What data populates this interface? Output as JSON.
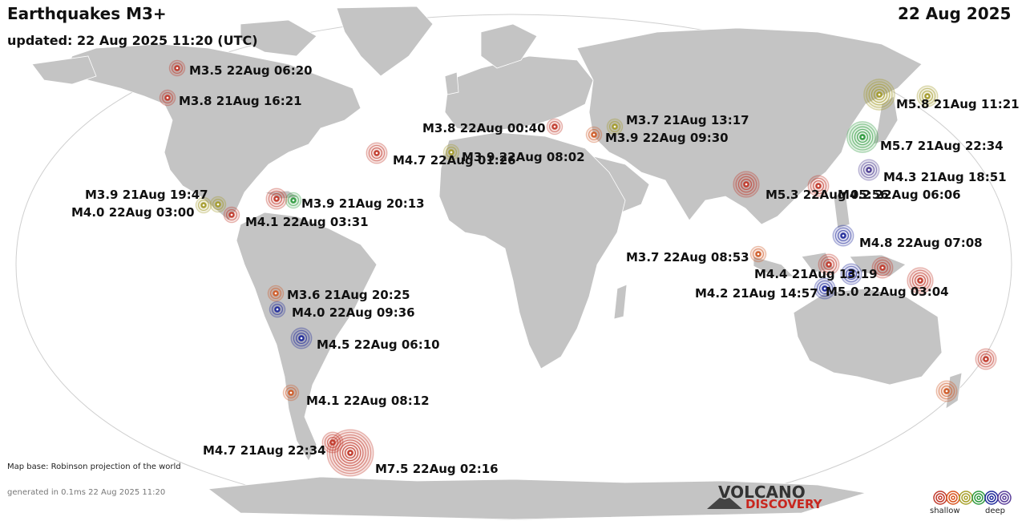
{
  "header": {
    "title": "Earthquakes M3+",
    "date": "22 Aug 2025",
    "updated": "updated: 22 Aug 2025 11:20 (UTC)"
  },
  "footer": {
    "map_base": "Map base: Robinson projection of the world",
    "generated": "generated in 0.1ms 22 Aug 2025 11:20"
  },
  "legend": {
    "shallow": "shallow",
    "deep": "deep",
    "depth_colors": [
      "#c0392b",
      "#d9541f",
      "#a8a02a",
      "#2e9a3e",
      "#1f2a9a",
      "#5a3e9a"
    ]
  },
  "logo": {
    "line1": "VOLCANO",
    "line2": "DISCOVERY"
  },
  "colors": {
    "land": "#c4c4c4",
    "ocean": "#ffffff",
    "red": "#c0392b",
    "orange": "#cf5a26",
    "olive": "#a39a2a",
    "green": "#2e9a3e",
    "blue": "#1f2a9a",
    "purple": "#4a3a90"
  },
  "quakes": [
    {
      "label": "M3.5 22Aug 06:20",
      "mag": 3.5,
      "color": "red"
    },
    {
      "label": "M3.8 21Aug 16:21",
      "mag": 3.8,
      "color": "red"
    },
    {
      "label": "M3.9 21Aug 19:47",
      "mag": 3.9,
      "color": "olive"
    },
    {
      "label": "M4.0 22Aug 03:00",
      "mag": 4.0,
      "color": "olive"
    },
    {
      "label": "M4.1 22Aug 03:31",
      "mag": 4.1,
      "color": "red"
    },
    {
      "label": "M3.9 21Aug 20:13",
      "mag": 3.9,
      "color": "green"
    },
    {
      "label": "M3.6 21Aug 20:25",
      "mag": 3.6,
      "color": "orange"
    },
    {
      "label": "M4.0 22Aug 09:36",
      "mag": 4.0,
      "color": "blue"
    },
    {
      "label": "M4.5 22Aug 06:10",
      "mag": 4.5,
      "color": "blue"
    },
    {
      "label": "M4.1 22Aug 08:12",
      "mag": 4.1,
      "color": "orange"
    },
    {
      "label": "M4.7 21Aug 22:34",
      "mag": 4.7,
      "color": "red"
    },
    {
      "label": "M7.5 22Aug 02:16",
      "mag": 7.5,
      "color": "red"
    },
    {
      "label": "M4.7 22Aug 01:26",
      "mag": 4.7,
      "color": "red"
    },
    {
      "label": "M3.9 22Aug 08:02",
      "mag": 3.9,
      "color": "olive"
    },
    {
      "label": "M3.8 22Aug 00:40",
      "mag": 3.8,
      "color": "red"
    },
    {
      "label": "M3.7 21Aug 13:17",
      "mag": 3.7,
      "color": "olive"
    },
    {
      "label": "M3.9 22Aug 09:30",
      "mag": 3.9,
      "color": "orange"
    },
    {
      "label": "M5.8 21Aug 11:21",
      "mag": 5.8,
      "color": "olive"
    },
    {
      "label": "M5.7 21Aug 22:34",
      "mag": 5.7,
      "color": "green"
    },
    {
      "label": "M4.3 21Aug 18:51",
      "mag": 4.3,
      "color": "purple"
    },
    {
      "label": "M5.3 22Aug 05:56",
      "mag": 5.3,
      "color": "red"
    },
    {
      "label": "M4.2 22Aug 06:06",
      "mag": 4.2,
      "color": "red"
    },
    {
      "label": "M4.8 22Aug 07:08",
      "mag": 4.8,
      "color": "blue"
    },
    {
      "label": "M3.7 22Aug 08:53",
      "mag": 3.7,
      "color": "orange"
    },
    {
      "label": "M4.4 21Aug 13:19",
      "mag": 4.4,
      "color": "red"
    },
    {
      "label": "M4.2 21Aug 14:57",
      "mag": 4.2,
      "color": "blue"
    },
    {
      "label": "M5.0 22Aug 03:04",
      "mag": 5.0,
      "color": "red"
    },
    {
      "label": "",
      "mag": 4.3,
      "color": "olive"
    },
    {
      "label": "",
      "mag": 4.5,
      "color": "red"
    },
    {
      "label": "",
      "mag": 4.5,
      "color": "blue"
    },
    {
      "label": "",
      "mag": 4.5,
      "color": "red"
    },
    {
      "label": "",
      "mag": 4.6,
      "color": "red"
    },
    {
      "label": "",
      "mag": 4.4,
      "color": "orange"
    }
  ]
}
